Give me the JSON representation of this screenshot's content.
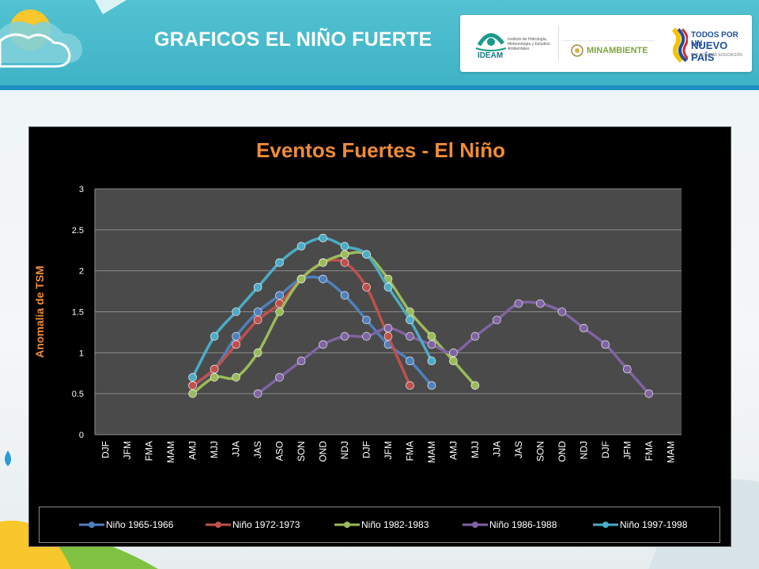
{
  "slide": {
    "title": "GRAFICOS EL NIÑO FUERTE"
  },
  "logos": {
    "ideam": "IDEAM",
    "ideam_sub": "Instituto de Hidrología, Meteorología y Estudios Ambientales",
    "minambiente": "MINAMBIENTE",
    "gov_line1": "TODOS POR UN",
    "gov_line2": "NUEVO PAÍS",
    "gov_line3": "PAZ  EQUIDAD  EDUCACIÓN"
  },
  "colors": {
    "header": "#47b8c9",
    "title_orange": "#f08c36",
    "plot_bg": "#4a4a4a"
  },
  "chart_data": {
    "type": "line",
    "title": "Eventos Fuertes -  El Niño",
    "ylabel": "Anomalia de TSM",
    "xlabel": "",
    "ylim": [
      0,
      3
    ],
    "yticks": [
      "0",
      "0.5",
      "1",
      "1.5",
      "2",
      "2.5",
      "3"
    ],
    "grid": true,
    "legend": "bottom",
    "categories": [
      "DJF",
      "JFM",
      "FMA",
      "MAM",
      "AMJ",
      "MJJ",
      "JJA",
      "JAS",
      "ASO",
      "SON",
      "OND",
      "NDJ",
      "DJF",
      "JFM",
      "FMA",
      "MAM",
      "AMJ",
      "MJJ",
      "JJA",
      "JAS",
      "SON",
      "OND",
      "NDJ",
      "DJF",
      "JFM",
      "FMA",
      "MAM"
    ],
    "series": [
      {
        "name": "Niño 1965-1966",
        "color": "#4f81bd",
        "values": [
          null,
          null,
          null,
          null,
          0.6,
          0.8,
          1.2,
          1.5,
          1.7,
          1.9,
          1.9,
          1.7,
          1.4,
          1.1,
          0.9,
          0.6,
          null,
          null,
          null,
          null,
          null,
          null,
          null,
          null,
          null,
          null,
          null
        ]
      },
      {
        "name": "Niño 1972-1973",
        "color": "#c0504d",
        "values": [
          null,
          null,
          null,
          null,
          0.6,
          0.8,
          1.1,
          1.4,
          1.6,
          1.9,
          2.1,
          2.1,
          1.8,
          1.2,
          0.6,
          null,
          null,
          null,
          null,
          null,
          null,
          null,
          null,
          null,
          null,
          null,
          null
        ]
      },
      {
        "name": "Niño 1982-1983",
        "color": "#9bbb59",
        "values": [
          null,
          null,
          null,
          null,
          0.5,
          0.7,
          0.7,
          1.0,
          1.5,
          1.9,
          2.1,
          2.2,
          2.2,
          1.9,
          1.5,
          1.2,
          0.9,
          0.6,
          null,
          null,
          null,
          null,
          null,
          null,
          null,
          null,
          null
        ]
      },
      {
        "name": "Niño 1986-1988",
        "color": "#8064a2",
        "values": [
          null,
          null,
          null,
          null,
          null,
          null,
          null,
          0.5,
          0.7,
          0.9,
          1.1,
          1.2,
          1.2,
          1.3,
          1.2,
          1.1,
          1.0,
          1.2,
          1.4,
          1.6,
          1.6,
          1.5,
          1.3,
          1.1,
          0.8,
          0.5,
          null
        ]
      },
      {
        "name": "Niño 1997-1998",
        "color": "#4bacc6",
        "values": [
          null,
          null,
          null,
          null,
          0.7,
          1.2,
          1.5,
          1.8,
          2.1,
          2.3,
          2.4,
          2.3,
          2.2,
          1.8,
          1.4,
          0.9,
          null,
          null,
          null,
          null,
          null,
          null,
          null,
          null,
          null,
          null,
          null
        ]
      }
    ]
  }
}
